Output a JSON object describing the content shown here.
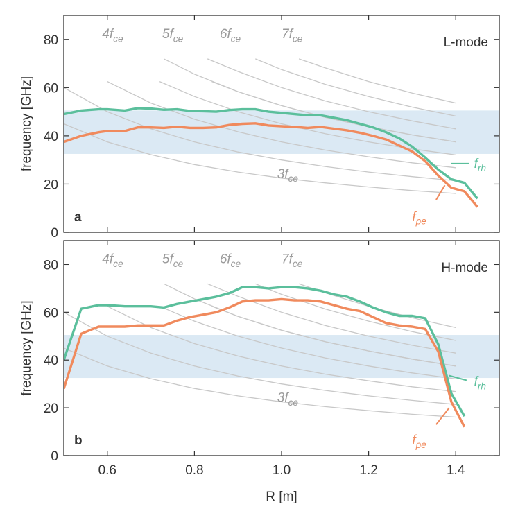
{
  "colors": {
    "rh": "#5bbf9c",
    "pe": "#f08a5d",
    "harmonic": "#c8c8c8",
    "harmonic_label": "#9a9a9a",
    "band": "#dbe9f4",
    "axis": "#333333"
  },
  "axes": {
    "xlabel": "R [m]",
    "ylabel": "frequency [GHz]",
    "xlim": [
      0.5,
      1.5
    ],
    "ylim": [
      0,
      90
    ],
    "xticks": [
      0.6,
      0.8,
      1.0,
      1.2,
      1.4
    ],
    "xtick_labels": [
      "0.6",
      "0.8",
      "1.0",
      "1.2",
      "1.4"
    ],
    "yticks": [
      0,
      20,
      40,
      60,
      80
    ],
    "ytick_labels": [
      "0",
      "20",
      "40",
      "60",
      "80"
    ]
  },
  "chart_data": [
    {
      "type": "line",
      "panel_label": "a",
      "mode_label": "L-mode",
      "band": [
        32.5,
        50.5
      ],
      "series": [
        {
          "key": "rh",
          "label_main": "f",
          "label_sub": "rh",
          "x": [
            0.5,
            0.54,
            0.58,
            0.6,
            0.64,
            0.67,
            0.7,
            0.73,
            0.76,
            0.79,
            0.82,
            0.85,
            0.88,
            0.91,
            0.94,
            0.97,
            1.0,
            1.03,
            1.06,
            1.09,
            1.12,
            1.15,
            1.18,
            1.21,
            1.24,
            1.27,
            1.3,
            1.33,
            1.36,
            1.39,
            1.42,
            1.45
          ],
          "y": [
            49.0,
            50.5,
            51.0,
            51.0,
            50.5,
            51.5,
            51.3,
            50.8,
            51.0,
            50.3,
            50.2,
            50.0,
            50.7,
            51.0,
            51.0,
            50.0,
            49.5,
            49.0,
            48.5,
            48.5,
            47.5,
            46.5,
            45.0,
            43.5,
            41.5,
            39.0,
            35.5,
            31.0,
            26.0,
            22.0,
            20.5,
            14.0
          ]
        },
        {
          "key": "pe",
          "label_main": "f",
          "label_sub": "pe",
          "x": [
            0.5,
            0.54,
            0.58,
            0.6,
            0.64,
            0.67,
            0.7,
            0.73,
            0.76,
            0.79,
            0.82,
            0.85,
            0.88,
            0.91,
            0.94,
            0.97,
            1.0,
            1.03,
            1.06,
            1.09,
            1.12,
            1.15,
            1.18,
            1.21,
            1.24,
            1.27,
            1.3,
            1.33,
            1.36,
            1.39,
            1.42,
            1.45
          ],
          "y": [
            37.5,
            40.0,
            41.5,
            42.0,
            42.0,
            43.5,
            43.5,
            43.3,
            43.8,
            43.3,
            43.3,
            43.5,
            44.5,
            45.0,
            45.2,
            44.3,
            44.0,
            43.7,
            43.3,
            43.7,
            43.0,
            42.3,
            41.3,
            40.0,
            38.5,
            36.0,
            33.5,
            29.5,
            23.5,
            18.5,
            17.0,
            10.5
          ]
        }
      ],
      "harmonics": [
        {
          "label_main": "3f",
          "label_sub": "ce",
          "x": [
            0.5,
            0.6,
            0.7,
            0.8,
            0.9,
            1.0,
            1.1,
            1.2,
            1.3,
            1.4
          ],
          "y": [
            45.0,
            37.5,
            32.2,
            28.1,
            25.0,
            22.5,
            20.5,
            18.8,
            17.3,
            16.1
          ]
        },
        {
          "label_main": "4f",
          "label_sub": "ce",
          "x": [
            0.5,
            0.6,
            0.7,
            0.8,
            0.9,
            1.0,
            1.1,
            1.2,
            1.3,
            1.4
          ],
          "y": [
            60.0,
            50.0,
            42.9,
            37.5,
            33.3,
            30.0,
            27.3,
            25.0,
            23.1,
            21.4
          ]
        },
        {
          "label_main": "5f",
          "label_sub": "ce",
          "x": [
            0.6,
            0.7,
            0.8,
            0.9,
            1.0,
            1.1,
            1.2,
            1.3,
            1.4
          ],
          "y": [
            62.5,
            53.6,
            46.9,
            41.7,
            37.5,
            34.1,
            31.3,
            28.8,
            26.8
          ]
        },
        {
          "label_main": "6f",
          "label_sub": "ce",
          "x": [
            0.72,
            0.8,
            0.9,
            1.0,
            1.1,
            1.2,
            1.3,
            1.4
          ],
          "y": [
            62.5,
            56.3,
            50.0,
            45.0,
            40.9,
            37.5,
            34.6,
            32.1
          ]
        },
        {
          "label_main": "7f",
          "label_sub": "ce",
          "x": [
            0.84,
            0.9,
            1.0,
            1.1,
            1.2,
            1.3,
            1.4
          ],
          "y": [
            62.5,
            58.3,
            52.5,
            47.7,
            43.8,
            40.4,
            37.5
          ]
        },
        {
          "x": [
            0.73,
            0.8,
            0.9,
            1.0,
            1.1,
            1.2,
            1.3,
            1.4
          ],
          "y": [
            71.9,
            65.6,
            58.3,
            52.5,
            47.7,
            43.8,
            40.4,
            37.5
          ]
        },
        {
          "x": [
            0.83,
            0.9,
            1.0,
            1.1,
            1.2,
            1.3,
            1.4
          ],
          "y": [
            71.9,
            66.7,
            60.0,
            54.5,
            50.0,
            46.2,
            42.9
          ]
        },
        {
          "x": [
            0.94,
            1.0,
            1.1,
            1.2,
            1.3,
            1.4
          ],
          "y": [
            71.9,
            67.5,
            61.4,
            56.3,
            51.9,
            48.2
          ]
        },
        {
          "x": [
            1.04,
            1.1,
            1.2,
            1.3,
            1.4
          ],
          "y": [
            71.9,
            68.2,
            62.5,
            57.7,
            53.6
          ]
        }
      ]
    },
    {
      "type": "line",
      "panel_label": "b",
      "mode_label": "H-mode",
      "band": [
        32.5,
        50.5
      ],
      "series": [
        {
          "key": "rh",
          "label_main": "f",
          "label_sub": "rh",
          "x": [
            0.5,
            0.54,
            0.58,
            0.6,
            0.64,
            0.67,
            0.7,
            0.73,
            0.76,
            0.79,
            0.82,
            0.85,
            0.88,
            0.91,
            0.94,
            0.97,
            1.0,
            1.03,
            1.06,
            1.09,
            1.12,
            1.15,
            1.18,
            1.21,
            1.24,
            1.27,
            1.3,
            1.33,
            1.36,
            1.39,
            1.42
          ],
          "y": [
            40.0,
            61.5,
            63.0,
            63.0,
            62.5,
            62.5,
            62.5,
            62.0,
            63.5,
            64.5,
            65.5,
            66.5,
            68.0,
            70.5,
            70.5,
            70.0,
            70.5,
            70.5,
            70.0,
            69.0,
            67.5,
            66.5,
            64.5,
            62.0,
            60.0,
            58.5,
            58.5,
            57.5,
            46.5,
            26.0,
            16.5
          ]
        },
        {
          "key": "pe",
          "label_main": "f",
          "label_sub": "pe",
          "x": [
            0.5,
            0.54,
            0.58,
            0.6,
            0.64,
            0.67,
            0.7,
            0.73,
            0.76,
            0.79,
            0.82,
            0.85,
            0.88,
            0.91,
            0.94,
            0.97,
            1.0,
            1.03,
            1.06,
            1.09,
            1.12,
            1.15,
            1.18,
            1.21,
            1.24,
            1.27,
            1.3,
            1.33,
            1.36,
            1.39,
            1.42
          ],
          "y": [
            28.0,
            51.0,
            54.0,
            54.0,
            54.0,
            54.5,
            54.5,
            54.5,
            56.5,
            58.0,
            59.0,
            60.0,
            62.0,
            64.5,
            65.0,
            65.0,
            65.5,
            65.0,
            65.0,
            64.5,
            63.0,
            61.5,
            60.5,
            58.0,
            55.5,
            54.5,
            54.0,
            53.0,
            43.5,
            22.5,
            12.0
          ]
        }
      ],
      "harmonics": [
        {
          "label_main": "3f",
          "label_sub": "ce",
          "x": [
            0.5,
            0.6,
            0.7,
            0.8,
            0.9,
            1.0,
            1.1,
            1.2,
            1.3,
            1.4
          ],
          "y": [
            45.0,
            37.5,
            32.2,
            28.1,
            25.0,
            22.5,
            20.5,
            18.8,
            17.3,
            16.1
          ]
        },
        {
          "label_main": "4f",
          "label_sub": "ce",
          "x": [
            0.5,
            0.6,
            0.7,
            0.8,
            0.9,
            1.0,
            1.1,
            1.2,
            1.3,
            1.4
          ],
          "y": [
            60.0,
            50.0,
            42.9,
            37.5,
            33.3,
            30.0,
            27.3,
            25.0,
            23.1,
            21.4
          ]
        },
        {
          "label_main": "5f",
          "label_sub": "ce",
          "x": [
            0.6,
            0.7,
            0.8,
            0.9,
            1.0,
            1.1,
            1.2,
            1.3,
            1.4
          ],
          "y": [
            62.5,
            53.6,
            46.9,
            41.7,
            37.5,
            34.1,
            31.3,
            28.8,
            26.8
          ]
        },
        {
          "label_main": "6f",
          "label_sub": "ce",
          "x": [
            0.72,
            0.8,
            0.9,
            1.0,
            1.1,
            1.2,
            1.3,
            1.4
          ],
          "y": [
            62.5,
            56.3,
            50.0,
            45.0,
            40.9,
            37.5,
            34.6,
            32.1
          ]
        },
        {
          "label_main": "7f",
          "label_sub": "ce",
          "x": [
            0.84,
            0.9,
            1.0,
            1.1,
            1.2,
            1.3,
            1.4
          ],
          "y": [
            62.5,
            58.3,
            52.5,
            47.7,
            43.8,
            40.4,
            37.5
          ]
        },
        {
          "x": [
            0.73,
            0.8,
            0.9,
            1.0,
            1.1,
            1.2,
            1.3,
            1.4
          ],
          "y": [
            71.9,
            65.6,
            58.3,
            52.5,
            47.7,
            43.8,
            40.4,
            37.5
          ]
        },
        {
          "x": [
            0.83,
            0.9,
            1.0,
            1.1,
            1.2,
            1.3,
            1.4
          ],
          "y": [
            71.9,
            66.7,
            60.0,
            54.5,
            50.0,
            46.2,
            42.9
          ]
        },
        {
          "x": [
            0.94,
            1.0,
            1.1,
            1.2,
            1.3,
            1.4
          ],
          "y": [
            71.9,
            67.5,
            61.4,
            56.3,
            51.9,
            48.2
          ]
        },
        {
          "x": [
            1.04,
            1.1,
            1.2,
            1.3,
            1.4
          ],
          "y": [
            71.9,
            68.2,
            62.5,
            57.7,
            53.6
          ]
        }
      ]
    }
  ]
}
